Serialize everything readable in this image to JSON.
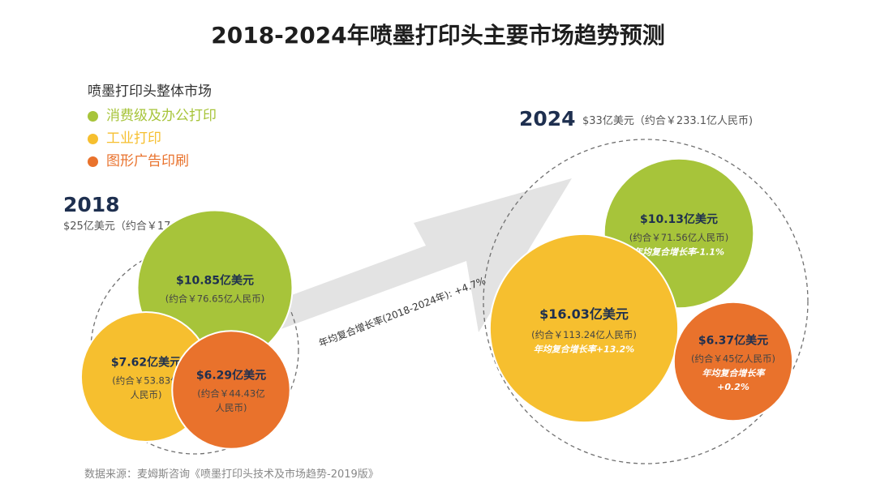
{
  "title": "2018-2024年喷墨打印头主要市场趋势预测",
  "legend": {
    "title": "喷墨打印头整体市场",
    "items": [
      {
        "label": "消费级及办公打印",
        "color": "#a7c43a"
      },
      {
        "label": "工业打印",
        "color": "#f6bf2f"
      },
      {
        "label": "图形广告印刷",
        "color": "#e9722c"
      }
    ]
  },
  "colors": {
    "title": "#1e1e1e",
    "year": "#1e2f4f",
    "arrow": "#e3e3e3",
    "ring": "#707070"
  },
  "chart_data": {
    "type": "bubble",
    "title": "2018-2024年喷墨打印头主要市场趋势预测",
    "growth_label": "年均复合增长率(2018-2024年): +4.7%",
    "groups": [
      {
        "year": "2018",
        "total": "$25亿美元（约合￥176.6亿人民币)",
        "items": [
          {
            "category": "消费级及办公打印",
            "value_usd": 10.85,
            "label": "$10.85亿美元",
            "sub": [
              "(约合￥76.65亿人民币)"
            ]
          },
          {
            "category": "工业打印",
            "value_usd": 7.62,
            "label": "$7.62亿美元",
            "sub": [
              "(约合￥53.83亿",
              "人民币)"
            ]
          },
          {
            "category": "图形广告印刷",
            "value_usd": 6.29,
            "label": "$6.29亿美元",
            "sub": [
              "(约合￥44.43亿",
              "人民币)"
            ]
          }
        ]
      },
      {
        "year": "2024",
        "total": "$33亿美元（约合￥233.1亿人民币)",
        "items": [
          {
            "category": "消费级及办公打印",
            "value_usd": 10.13,
            "label": "$10.13亿美元",
            "sub": [
              "(约合￥71.56亿人民币)"
            ],
            "cagr": [
              "年均复合增长率-1.1%"
            ]
          },
          {
            "category": "工业打印",
            "value_usd": 16.03,
            "label": "$16.03亿美元",
            "sub": [
              "(约合￥113.24亿人民币)"
            ],
            "cagr": [
              "年均复合增长率+13.2%"
            ]
          },
          {
            "category": "图形广告印刷",
            "value_usd": 6.37,
            "label": "$6.37亿美元",
            "sub": [
              "(约合￥45亿人民币)"
            ],
            "cagr": [
              "年均复合增长率",
              "+0.2%"
            ]
          }
        ]
      }
    ]
  },
  "source": "数据来源：麦姆斯咨询《喷墨打印头技术及市场趋势-2019版》"
}
